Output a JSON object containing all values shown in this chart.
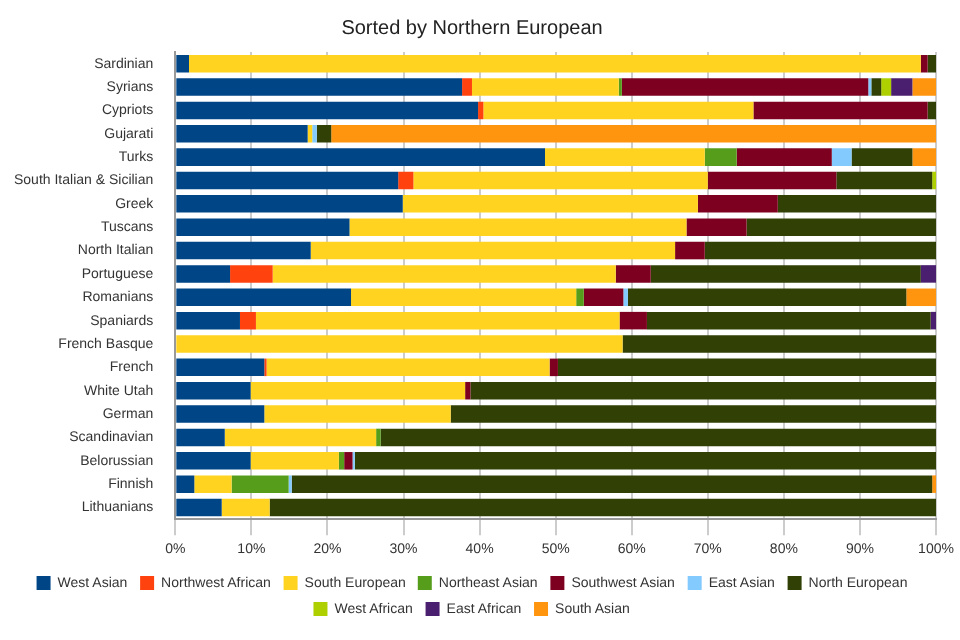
{
  "chart_data": {
    "type": "bar",
    "orientation": "horizontal",
    "stacked": true,
    "title": "Sorted by Northern European",
    "categories": [
      "Sardinian",
      "Syrians",
      "Cypriots",
      "Gujarati",
      "Turks",
      "South Italian & Sicilian",
      "Greek",
      "Tuscans",
      "North Italian",
      "Portuguese",
      "Romanians",
      "Spaniards",
      "French Basque",
      "French",
      "White Utah",
      "German",
      "Scandinavian",
      "Belorussian",
      "Finnish",
      "Lithuanians"
    ],
    "series": [
      {
        "name": "West Asian",
        "color": "#004586",
        "values": [
          1.8,
          37.7,
          39.8,
          17.4,
          48.6,
          29.3,
          29.9,
          22.9,
          17.8,
          7.2,
          23.1,
          8.5,
          0,
          11.7,
          9.9,
          11.7,
          6.5,
          9.9,
          2.5,
          6.1
        ]
      },
      {
        "name": "Northwest African",
        "color": "#ff420e",
        "values": [
          0,
          1.3,
          0.7,
          0,
          0,
          2.0,
          0,
          0,
          0,
          5.6,
          0,
          2.1,
          0,
          0.3,
          0,
          0,
          0,
          0,
          0,
          0
        ]
      },
      {
        "name": "South European",
        "color": "#ffd320",
        "values": [
          96.2,
          19.3,
          35.5,
          0.6,
          21.0,
          38.7,
          38.8,
          44.3,
          47.9,
          45.1,
          29.6,
          47.8,
          58.8,
          37.2,
          28.2,
          24.5,
          19.9,
          11.6,
          4.9,
          6.3
        ]
      },
      {
        "name": "Northeast Asian",
        "color": "#579d1c",
        "values": [
          0,
          0.4,
          0,
          0,
          4.2,
          0,
          0,
          0,
          0,
          0,
          1.0,
          0,
          0,
          0,
          0,
          0,
          0.6,
          0.7,
          7.5,
          0
        ]
      },
      {
        "name": "Southwest Asian",
        "color": "#7e0021",
        "values": [
          0.9,
          32.4,
          22.9,
          0,
          12.5,
          16.9,
          10.5,
          7.9,
          3.9,
          4.6,
          5.2,
          3.6,
          0,
          1.1,
          0.7,
          0,
          0,
          1.1,
          0,
          0
        ]
      },
      {
        "name": "East Asian",
        "color": "#83caff",
        "values": [
          0,
          0.4,
          0,
          0.6,
          2.6,
          0,
          0,
          0,
          0,
          0,
          0.6,
          0,
          0,
          0,
          0,
          0,
          0,
          0.3,
          0.4,
          0
        ]
      },
      {
        "name": "North European",
        "color": "#314004",
        "values": [
          1.1,
          1.3,
          1.1,
          1.9,
          8.0,
          12.6,
          20.8,
          24.9,
          30.4,
          35.5,
          36.6,
          37.3,
          41.2,
          49.7,
          61.2,
          63.8,
          73.0,
          76.4,
          84.2,
          87.6
        ]
      },
      {
        "name": "West African",
        "color": "#aecf00",
        "values": [
          0,
          1.3,
          0,
          0,
          0,
          0.5,
          0,
          0,
          0,
          0,
          0,
          0,
          0,
          0,
          0,
          0,
          0,
          0,
          0,
          0
        ]
      },
      {
        "name": "East African",
        "color": "#4b1f6f",
        "values": [
          0,
          2.8,
          0,
          0,
          0,
          0,
          0,
          0,
          0,
          2.0,
          0,
          0.7,
          0,
          0,
          0,
          0,
          0,
          0,
          0,
          0
        ]
      },
      {
        "name": "South Asian",
        "color": "#ff950e",
        "values": [
          0,
          3.1,
          0,
          79.5,
          3.1,
          0,
          0,
          0,
          0,
          0,
          3.9,
          0,
          0,
          0,
          0,
          0,
          0,
          0,
          0.5,
          0
        ]
      }
    ],
    "xlim": [
      0,
      100
    ],
    "xticks": [
      {
        "value": 0,
        "label": "0%"
      },
      {
        "value": 10,
        "label": "10%"
      },
      {
        "value": 20,
        "label": "20%"
      },
      {
        "value": 30,
        "label": "30%"
      },
      {
        "value": 40,
        "label": "40%"
      },
      {
        "value": 50,
        "label": "50%"
      },
      {
        "value": 60,
        "label": "60%"
      },
      {
        "value": 70,
        "label": "70%"
      },
      {
        "value": 80,
        "label": "80%"
      },
      {
        "value": 90,
        "label": "90%"
      },
      {
        "value": 100,
        "label": "100%"
      }
    ],
    "grid": "x",
    "legend": "bottom"
  }
}
